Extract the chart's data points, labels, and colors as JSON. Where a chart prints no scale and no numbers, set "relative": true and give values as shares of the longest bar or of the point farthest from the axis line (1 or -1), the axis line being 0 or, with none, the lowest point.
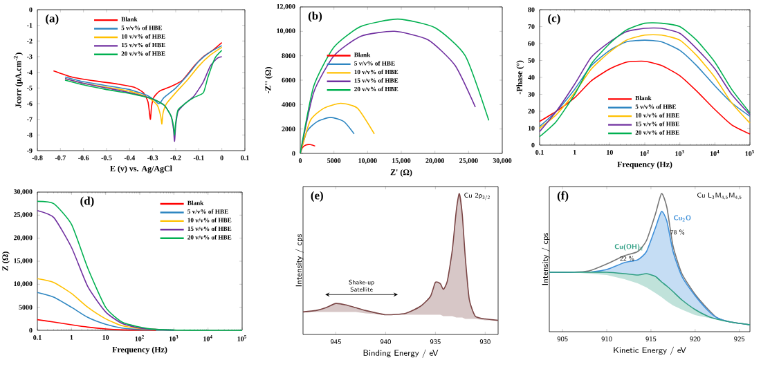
{
  "chart_data": [
    {
      "type": "line",
      "xlabel": "E (v) vs. Ag/AgCl",
      "ylabel": "Jcorr (μA.cm$^{-2}$)",
      "annotations": [
        "(a)"
      ],
      "legend": "top",
      "xlim": [
        -0.8,
        0.1
      ],
      "xticks": [
        -0.8,
        -0.7,
        -0.6,
        -0.5,
        -0.4,
        -0.3,
        -0.2,
        -0.1,
        0,
        0.1
      ],
      "ylim": [
        -9,
        0
      ],
      "yticks": [
        -9,
        -8,
        -7,
        -6,
        -5,
        -4,
        -3,
        -2,
        -1,
        0
      ],
      "series": [
        {
          "name": "Blank",
          "color": "#ff0000",
          "x": [
            -0.73,
            -0.65,
            -0.55,
            -0.45,
            -0.38,
            -0.34,
            -0.32,
            -0.31,
            -0.305,
            -0.295,
            -0.27,
            -0.22,
            -0.17,
            -0.12,
            -0.08,
            -0.04,
            0
          ],
          "values": [
            -3.9,
            -4.3,
            -4.55,
            -4.75,
            -4.95,
            -5.3,
            -5.9,
            -7.0,
            -6.2,
            -5.6,
            -5.2,
            -4.9,
            -4.5,
            -3.6,
            -3.0,
            -2.6,
            -2.1
          ]
        },
        {
          "name": "5 v/v% of HBE",
          "color": "#2e86c1",
          "x": [
            -0.68,
            -0.6,
            -0.5,
            -0.4,
            -0.32,
            -0.29,
            -0.275,
            -0.265,
            -0.25,
            -0.2,
            -0.15,
            -0.1,
            -0.05,
            0
          ],
          "values": [
            -4.3,
            -4.6,
            -4.85,
            -5.1,
            -5.5,
            -5.8,
            -6.0,
            -5.9,
            -5.6,
            -5.0,
            -4.2,
            -3.3,
            -2.7,
            -2.3
          ]
        },
        {
          "name": "10 v/v% of HBE",
          "color": "#ffc000",
          "x": [
            -0.68,
            -0.6,
            -0.5,
            -0.4,
            -0.32,
            -0.28,
            -0.265,
            -0.26,
            -0.255,
            -0.24,
            -0.2,
            -0.15,
            -0.1,
            -0.05,
            0
          ],
          "values": [
            -4.4,
            -4.7,
            -4.95,
            -5.2,
            -5.6,
            -6.1,
            -6.8,
            -7.3,
            -6.6,
            -6.0,
            -5.3,
            -4.5,
            -3.6,
            -2.9,
            -2.4
          ]
        },
        {
          "name": "15 v/v% of HBE",
          "color": "#7030a0",
          "x": [
            -0.68,
            -0.6,
            -0.5,
            -0.4,
            -0.3,
            -0.25,
            -0.22,
            -0.21,
            -0.205,
            -0.2,
            -0.19,
            -0.16,
            -0.12,
            -0.08,
            -0.05,
            -0.02,
            0
          ],
          "values": [
            -4.4,
            -4.7,
            -5.0,
            -5.3,
            -5.7,
            -6.1,
            -6.8,
            -7.6,
            -8.4,
            -7.4,
            -6.5,
            -6.0,
            -5.5,
            -4.6,
            -3.6,
            -3.1,
            -3.0
          ]
        },
        {
          "name": "20 v/v% of HBE",
          "color": "#00b050",
          "x": [
            -0.68,
            -0.6,
            -0.5,
            -0.4,
            -0.3,
            -0.25,
            -0.22,
            -0.21,
            -0.205,
            -0.2,
            -0.19,
            -0.16,
            -0.12,
            -0.08,
            -0.06,
            -0.03,
            0
          ],
          "values": [
            -4.5,
            -4.8,
            -5.1,
            -5.35,
            -5.7,
            -6.1,
            -6.8,
            -7.4,
            -8.0,
            -7.2,
            -6.4,
            -6.0,
            -5.6,
            -5.3,
            -4.3,
            -3.1,
            -2.6
          ]
        }
      ]
    },
    {
      "type": "line",
      "xlabel": "Z' (Ω)",
      "ylabel": "-Z'' (Ω)",
      "annotations": [
        "(b)"
      ],
      "legend": "left",
      "xlim": [
        0,
        30000
      ],
      "xticks": [
        0,
        5000,
        {
          "value": 10000,
          "label": "10,000"
        },
        {
          "value": 15000,
          "label": "15,000"
        },
        {
          "value": 20000,
          "label": "20,000"
        },
        {
          "value": 25000,
          "label": "25,000"
        },
        {
          "value": 30000,
          "label": "30,000"
        }
      ],
      "ylim": [
        0,
        12000
      ],
      "yticks": [
        0,
        2000,
        4000,
        6000,
        8000,
        {
          "value": 10000,
          "label": "10,000"
        },
        {
          "value": 12000,
          "label": "12,000"
        }
      ],
      "series": [
        {
          "name": "Blank",
          "color": "#ff0000",
          "x": [
            0,
            300,
            800,
            1500,
            2200
          ],
          "values": [
            0,
            450,
            680,
            720,
            600
          ]
        },
        {
          "name": "5 v/v% of HBE",
          "color": "#2e86c1",
          "x": [
            0,
            1000,
            2500,
            4500,
            6500,
            8000
          ],
          "values": [
            0,
            1800,
            2600,
            2950,
            2600,
            1600
          ]
        },
        {
          "name": "10 v/v% of HBE",
          "color": "#ffc000",
          "x": [
            0,
            1500,
            3500,
            6000,
            8500,
            11000
          ],
          "values": [
            0,
            2700,
            3700,
            4100,
            3700,
            1600
          ]
        },
        {
          "name": "15 v/v% of HBE",
          "color": "#7030a0",
          "x": [
            0,
            2000,
            5000,
            9000,
            14000,
            19000,
            23000,
            26000
          ],
          "values": [
            0,
            5000,
            8000,
            9600,
            10000,
            9300,
            7200,
            3800
          ]
        },
        {
          "name": "20 v/v% of HBE",
          "color": "#00b050",
          "x": [
            0,
            2000,
            5000,
            9000,
            14500,
            20000,
            24500,
            28000
          ],
          "values": [
            0,
            5500,
            8700,
            10400,
            11000,
            10300,
            8000,
            2700
          ]
        }
      ]
    },
    {
      "type": "line",
      "log": "x",
      "xlabel": "Frequency (Hz)",
      "ylabel": "-Phase (°)",
      "annotations": [
        "(c)"
      ],
      "legend": "bottom",
      "xlim": [
        0.1,
        100000
      ],
      "xticks": [
        0.1,
        1,
        10,
        {
          "value": 100,
          "label": "10$^{2}$"
        },
        {
          "value": 1000,
          "label": "10$^{3}$"
        },
        {
          "value": 10000,
          "label": "10$^{4}$"
        },
        {
          "value": 100000,
          "label": "10$^{5}$"
        }
      ],
      "ylim": [
        0,
        80
      ],
      "yticks": [
        0,
        10,
        20,
        30,
        40,
        50,
        60,
        70,
        80
      ],
      "x": [
        0.1,
        0.3,
        1,
        3,
        10,
        30,
        100,
        300,
        1000,
        3000,
        10000,
        30000,
        100000
      ],
      "series": [
        {
          "name": "Blank",
          "color": "#ff0000",
          "values": [
            14,
            20,
            28,
            38,
            45,
            49,
            49.5,
            47,
            41,
            32,
            21,
            12,
            6.5
          ]
        },
        {
          "name": "5 v/v% of HBE",
          "color": "#2e86c1",
          "values": [
            11,
            20,
            33,
            47,
            56,
            61,
            62,
            61,
            56,
            47,
            35,
            25,
            17
          ]
        },
        {
          "name": "10 v/v% of HBE",
          "color": "#ffc000",
          "values": [
            10,
            18,
            31,
            45,
            55,
            62,
            65,
            65,
            62,
            53,
            40,
            25,
            13
          ]
        },
        {
          "name": "15 v/v% of HBE",
          "color": "#7030a0",
          "values": [
            8,
            20,
            36,
            52,
            61,
            67,
            69,
            69,
            66,
            57,
            45,
            30,
            18
          ]
        },
        {
          "name": "20 v/v% of HBE",
          "color": "#00b050",
          "values": [
            5,
            14,
            30,
            48,
            60,
            68,
            72,
            72,
            70,
            62,
            49,
            33,
            19
          ]
        }
      ]
    },
    {
      "type": "line",
      "log": "x",
      "xlabel": "Frequency (Hz)",
      "ylabel": "Z (Ω)",
      "annotations": [
        "(d)"
      ],
      "legend": "top right",
      "xlim": [
        0.1,
        100000
      ],
      "xticks": [
        0.1,
        1,
        10,
        {
          "value": 100,
          "label": "10$^{2}$"
        },
        {
          "value": 1000,
          "label": "10$^{3}$"
        },
        {
          "value": 10000,
          "label": "10$^{4}$"
        },
        {
          "value": 100000,
          "label": "10$^{5}$"
        }
      ],
      "ylim": [
        0,
        30000
      ],
      "yticks": [
        0,
        5000,
        {
          "value": 10000,
          "label": "10,000"
        },
        {
          "value": 15000,
          "label": "15,000"
        },
        {
          "value": 20000,
          "label": "20,000"
        },
        {
          "value": 25000,
          "label": "25,000"
        },
        {
          "value": 30000,
          "label": "30,000"
        }
      ],
      "x": [
        0.1,
        0.3,
        1,
        3,
        10,
        30,
        100,
        300,
        1000,
        10000,
        100000
      ],
      "series": [
        {
          "name": "Blank",
          "color": "#ff0000",
          "values": [
            2300,
            1800,
            1200,
            700,
            300,
            100,
            50,
            0,
            null,
            null,
            null
          ]
        },
        {
          "name": "5 v/v% of HBE",
          "color": "#2e86c1",
          "values": [
            8200,
            7200,
            5000,
            2800,
            1300,
            500,
            200,
            100,
            30,
            null,
            null
          ]
        },
        {
          "name": "10  v/v% of HBE",
          "color": "#ffc000",
          "values": [
            11200,
            10400,
            8000,
            5000,
            2500,
            1000,
            400,
            200,
            null,
            null,
            null
          ]
        },
        {
          "name": "15  v/v% of HBE",
          "color": "#7030a0",
          "values": [
            26000,
            24500,
            18000,
            9500,
            4000,
            1500,
            500,
            200,
            50,
            null,
            null
          ]
        },
        {
          "name": "20  v/v% of HBE",
          "color": "#00b050",
          "values": [
            28000,
            27500,
            23000,
            13500,
            5000,
            1800,
            700,
            200,
            50,
            0,
            0
          ]
        }
      ]
    },
    {
      "type": "line",
      "relative": true,
      "xlabel": "Binding Energy / eV",
      "ylabel": "Intensity / cps",
      "annotations": [
        "(e)",
        "Cu 2p$_{3/2}$",
        "Shake-up Satellite"
      ],
      "xlim": [
        948.3,
        928.7
      ],
      "xticks": [
        945,
        940,
        935,
        930
      ],
      "series": [
        {
          "color": "#7a4545",
          "x": [
            948.3,
            947,
            946,
            945,
            944,
            943,
            942,
            940,
            938,
            936.5,
            935.5,
            935,
            934.5,
            934.2,
            933.8,
            933.3,
            932.9,
            932.6,
            932.3,
            932,
            931.6,
            931,
            930,
            928.7
          ],
          "values": [
            0.16,
            0.17,
            0.19,
            0.22,
            0.21,
            0.19,
            0.17,
            0.14,
            0.15,
            0.2,
            0.27,
            0.37,
            0.36,
            0.32,
            0.38,
            0.6,
            0.88,
            1.0,
            0.85,
            0.55,
            0.25,
            0.13,
            0.11,
            0.1
          ],
          "lower": [
            0.16,
            0.16,
            0.16,
            0.16,
            0.16,
            0.16,
            0.15,
            0.14,
            0.14,
            0.14,
            0.14,
            0.14,
            0.14,
            0.13,
            0.13,
            0.13,
            0.12,
            0.12,
            0.12,
            0.11,
            0.11,
            0.11,
            0.1,
            0.1
          ],
          "upper": [
            0.16,
            0.17,
            0.19,
            0.22,
            0.21,
            0.19,
            0.17,
            0.14,
            0.15,
            0.2,
            0.27,
            0.37,
            0.36,
            0.32,
            0.38,
            0.6,
            0.88,
            1.0,
            0.85,
            0.55,
            0.25,
            0.13,
            0.11,
            0.1
          ]
        }
      ]
    },
    {
      "type": "line",
      "relative": true,
      "xlabel": "Kinetic Energy / eV",
      "ylabel": "Intensity / cps",
      "annotations": [
        "(f)",
        "Cu L$_{3}$M$_{4,5}$M$_{4,5}$",
        {
          "text": "78 %",
          "x": 918,
          "y": 0.72
        },
        {
          "text": "22 %",
          "x": 912.3,
          "y": 0.53
        }
      ],
      "xlim": [
        903.5,
        926.2
      ],
      "xticks": [
        905,
        910,
        915,
        920,
        925
      ],
      "x": [
        903.5,
        906,
        908,
        910,
        912,
        913.5,
        914.5,
        915.5,
        916.2,
        916.8,
        917.5,
        918.5,
        920,
        921.5,
        922.5,
        924,
        926.2
      ],
      "series": [
        {
          "color": "#777777",
          "values": [
            0.43,
            0.43,
            0.44,
            0.49,
            0.55,
            0.58,
            0.66,
            0.85,
            1.0,
            0.9,
            0.62,
            0.42,
            0.27,
            0.16,
            0.1,
            0.07,
            0.05
          ]
        },
        {
          "name": "Cu$_{2}$O",
          "color": "#3d8fd9",
          "values": [
            0.43,
            0.43,
            0.43,
            0.45,
            0.5,
            0.52,
            0.58,
            0.75,
            0.87,
            0.8,
            0.58,
            0.4,
            0.26,
            0.15,
            0.1,
            0.07,
            0.05
          ],
          "upper": [
            0.43,
            0.43,
            0.43,
            0.45,
            0.5,
            0.52,
            0.58,
            0.75,
            0.87,
            0.8,
            0.58,
            0.4,
            0.26,
            0.15,
            0.1,
            0.07,
            0.05
          ],
          "lower": [
            0.43,
            0.43,
            0.43,
            0.43,
            0.42,
            0.41,
            0.42,
            0.4,
            0.36,
            0.33,
            0.29,
            0.23,
            0.16,
            0.11,
            0.09,
            0.07,
            0.05
          ]
        },
        {
          "name": "Cu(OH)$_{2}$",
          "color": "#2e9e83",
          "values": [
            0.43,
            0.43,
            0.43,
            0.43,
            0.42,
            0.41,
            0.42,
            0.4,
            0.36,
            0.33,
            0.29,
            0.23,
            0.16,
            0.11,
            0.09,
            0.07,
            0.05
          ],
          "upper": [
            0.43,
            0.43,
            0.43,
            0.43,
            0.42,
            0.41,
            0.42,
            0.4,
            0.36,
            0.33,
            0.29,
            0.23,
            0.16,
            0.11,
            0.09,
            0.07,
            0.05
          ],
          "lower": [
            0.43,
            0.43,
            0.42,
            0.41,
            0.38,
            0.35,
            0.32,
            0.28,
            0.25,
            0.22,
            0.19,
            0.16,
            0.12,
            0.1,
            0.09,
            0.07,
            0.05
          ]
        }
      ]
    }
  ]
}
